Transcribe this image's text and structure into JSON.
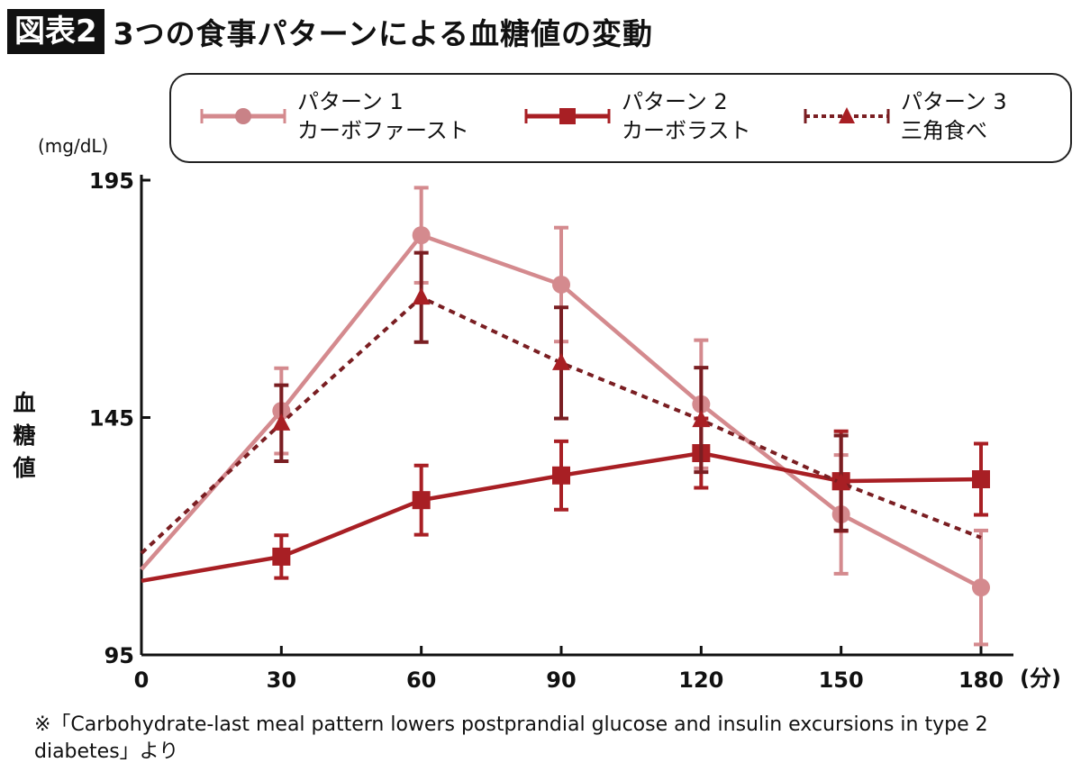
{
  "figure_label": "図表2",
  "title": "3つの食事パターンによる血糖値の変動",
  "chart_data": {
    "type": "line",
    "title": "3つの食事パターンによる血糖値の変動",
    "xlabel": "(分)",
    "ylabel": "血糖値",
    "y_unit": "(mg/dL)",
    "x": [
      0,
      30,
      60,
      90,
      120,
      150,
      180
    ],
    "x_ticks": [
      "0",
      "30",
      "60",
      "90",
      "120",
      "150",
      "180"
    ],
    "y_ticks": [
      "95",
      "145",
      "195"
    ],
    "ylim": [
      95,
      195
    ],
    "xlim": [
      0,
      180
    ],
    "grid": false,
    "legend_position": "top",
    "series": [
      {
        "name": "パターン 1",
        "subname": "カーボファースト",
        "color": "#d48a8e",
        "marker": "circle",
        "line": "solid",
        "values": [
          113,
          146.4,
          183.4,
          173,
          147.8,
          124.6,
          109.2
        ],
        "error": [
          null,
          9,
          10,
          12,
          13.5,
          12.5,
          12
        ]
      },
      {
        "name": "パターン 2",
        "subname": "カーボラスト",
        "color": "#a81f24",
        "marker": "square",
        "line": "solid",
        "values": [
          110.6,
          115.7,
          127.6,
          132.8,
          137.5,
          131.6,
          132
        ],
        "error": [
          null,
          4.5,
          7.3,
          7.2,
          7.3,
          10.5,
          7.5
        ]
      },
      {
        "name": "パターン 3",
        "subname": "三角食べ",
        "color": "#7a1e22",
        "marker": "triangle",
        "line": "dotted",
        "values": [
          116.4,
          143.8,
          170.3,
          156.5,
          144.5,
          131.2,
          119.7
        ],
        "error": [
          null,
          8,
          9.4,
          11.7,
          11,
          10,
          null
        ]
      }
    ]
  },
  "source_note": "※「Carbohydrate-last meal pattern lowers postprandial glucose and insulin excursions in type 2 diabetes」より"
}
